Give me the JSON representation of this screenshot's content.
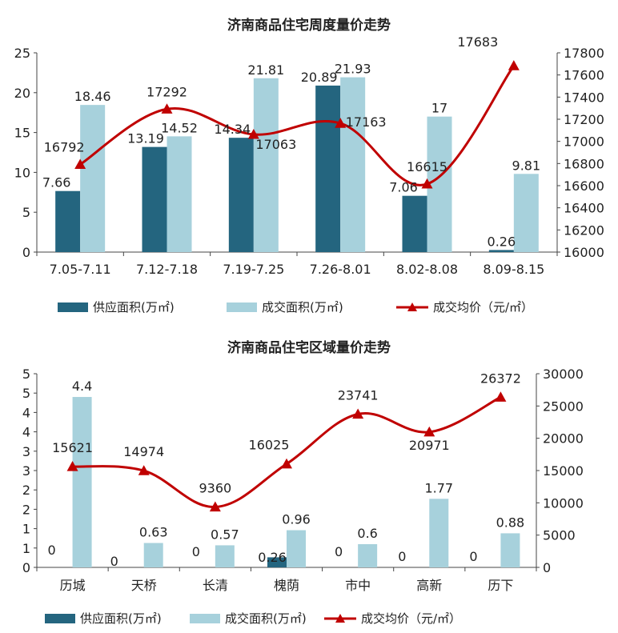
{
  "colors": {
    "supply": "#24657f",
    "deal": "#a7d1dc",
    "price": "#c00000",
    "axis": "#444444",
    "text": "#222222"
  },
  "chart_data": [
    {
      "type": "bar",
      "title": "济南商品住宅周度量价走势",
      "categories": [
        "7.05-7.11",
        "7.12-7.18",
        "7.19-7.25",
        "7.26-8.01",
        "8.02-8.08",
        "8.09-8.15"
      ],
      "series": [
        {
          "name": "供应面积(万㎡)",
          "type": "bar",
          "axis": "left",
          "values": [
            7.66,
            13.19,
            14.34,
            20.89,
            7.06,
            0.26
          ],
          "labels": [
            "7.66",
            "13.19",
            "14.34",
            "20.89",
            "7.06",
            "0.26"
          ]
        },
        {
          "name": "成交面积(万㎡)",
          "type": "bar",
          "axis": "left",
          "values": [
            18.46,
            14.52,
            21.81,
            21.93,
            17,
            9.81
          ],
          "labels": [
            "18.46",
            "14.52",
            "21.81",
            "21.93",
            "17",
            "9.81"
          ]
        },
        {
          "name": "成交均价（元/㎡）",
          "type": "line",
          "axis": "right",
          "values": [
            16792,
            17292,
            17063,
            17163,
            16615,
            17683
          ],
          "labels": [
            "16792",
            "17292",
            "17063",
            "17163",
            "16615",
            "17683"
          ]
        }
      ],
      "y_left": {
        "min": 0,
        "max": 25,
        "ticks": [
          "0",
          "5",
          "10",
          "15",
          "20",
          "25"
        ]
      },
      "y_right": {
        "min": 16000,
        "max": 17800,
        "ticks": [
          "16000",
          "16200",
          "16400",
          "16600",
          "16800",
          "17000",
          "17200",
          "17400",
          "17600",
          "17800"
        ]
      },
      "grid": false,
      "legend": "bottom"
    },
    {
      "type": "bar",
      "title": "济南商品住宅区域量价走势",
      "categories": [
        "历城",
        "天桥",
        "长清",
        "槐荫",
        "市中",
        "高新",
        "历下"
      ],
      "series": [
        {
          "name": "供应面积(万㎡)",
          "type": "bar",
          "axis": "left",
          "values": [
            0,
            0,
            0,
            0.26,
            0,
            0,
            0
          ],
          "labels": [
            "0",
            "0",
            "0",
            "0.26",
            "0",
            "0",
            "0"
          ]
        },
        {
          "name": "成交面积(万㎡)",
          "type": "bar",
          "axis": "left",
          "values": [
            4.4,
            0.63,
            0.57,
            0.96,
            0.6,
            1.77,
            0.88
          ],
          "labels": [
            "4.4",
            "0.63",
            "0.57",
            "0.96",
            "0.6",
            "1.77",
            "0.88"
          ]
        },
        {
          "name": "成交均价（元/㎡）",
          "type": "line",
          "axis": "right",
          "values": [
            15621,
            14974,
            9360,
            16025,
            23741,
            20971,
            26372
          ],
          "labels": [
            "15621",
            "14974",
            "9360",
            "16025",
            "23741",
            "20971",
            "26372"
          ]
        }
      ],
      "y_left": {
        "min": 0,
        "max": 5,
        "ticks": [
          "0",
          "1",
          "1",
          "2",
          "2",
          "3",
          "3",
          "4",
          "4",
          "5",
          "5"
        ]
      },
      "y_right": {
        "min": 0,
        "max": 30000,
        "ticks": [
          "0",
          "5000",
          "10000",
          "15000",
          "20000",
          "25000",
          "30000"
        ]
      },
      "grid": false,
      "legend": "bottom"
    }
  ]
}
